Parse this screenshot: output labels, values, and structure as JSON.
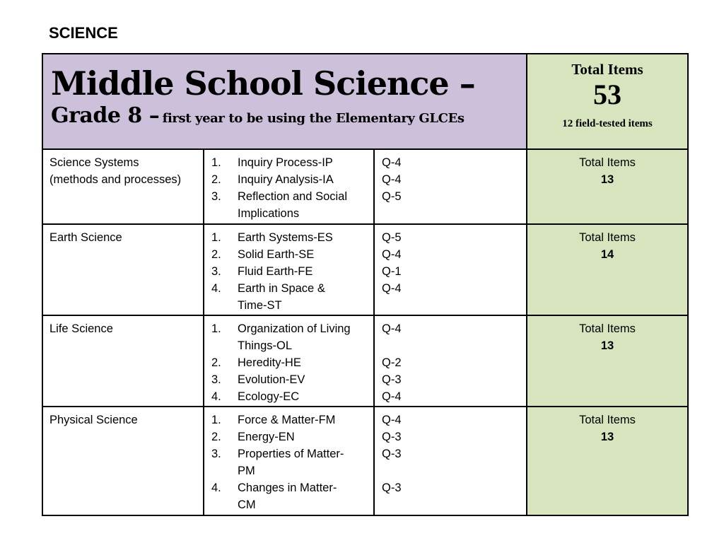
{
  "slide_label": "SCIENCE",
  "header": {
    "title": "Middle School Science –",
    "grade": "Grade 8 –",
    "note": "first year to be using the Elementary GLCEs",
    "total_label": "Total Items",
    "total_value": "53",
    "field_tested": "12 field-tested items"
  },
  "rows": [
    {
      "area_line1": "Science Systems",
      "area_line2": "(methods and processes)",
      "items": [
        {
          "num": "1.",
          "lines": [
            "Inquiry Process-IP"
          ]
        },
        {
          "num": "2.",
          "lines": [
            "Inquiry Analysis-IA"
          ]
        },
        {
          "num": "3.",
          "lines": [
            "Reflection and Social",
            "Implications"
          ]
        }
      ],
      "q": [
        "Q-4",
        "Q-4",
        "Q-5"
      ],
      "total_label": "Total Items",
      "total_value": "13"
    },
    {
      "area_line1": "Earth Science",
      "items": [
        {
          "num": "1.",
          "lines": [
            "Earth Systems-ES"
          ]
        },
        {
          "num": "2.",
          "lines": [
            "Solid Earth-SE"
          ]
        },
        {
          "num": "3.",
          "lines": [
            "Fluid Earth-FE"
          ]
        },
        {
          "num": "4.",
          "lines": [
            "Earth in Space &",
            "Time-ST"
          ]
        }
      ],
      "q": [
        "Q-5",
        "Q-4",
        "Q-1",
        "Q-4"
      ],
      "total_label": "Total Items",
      "total_value": "14"
    },
    {
      "area_line1": "Life Science",
      "items": [
        {
          "num": "1.",
          "lines": [
            "Organization of Living",
            "Things-OL"
          ]
        },
        {
          "num": "2.",
          "lines": [
            "Heredity-HE"
          ]
        },
        {
          "num": "3.",
          "lines": [
            "Evolution-EV"
          ]
        },
        {
          "num": "4.",
          "lines": [
            "Ecology-EC"
          ]
        }
      ],
      "q": [
        "Q-4",
        "",
        "Q-2",
        "Q-3",
        "Q-4"
      ],
      "total_label": "Total Items",
      "total_value": "13"
    },
    {
      "area_line1": "Physical Science",
      "items": [
        {
          "num": "1.",
          "lines": [
            "Force & Matter-FM"
          ]
        },
        {
          "num": "2.",
          "lines": [
            "Energy-EN"
          ]
        },
        {
          "num": "3.",
          "lines": [
            "Properties of Matter-",
            "PM"
          ]
        },
        {
          "num": "4.",
          "lines": [
            "Changes in Matter-",
            "CM"
          ]
        }
      ],
      "q": [
        "Q-4",
        "Q-3",
        "Q-3",
        "",
        "Q-3"
      ],
      "total_label": "Total Items",
      "total_value": "13"
    }
  ]
}
